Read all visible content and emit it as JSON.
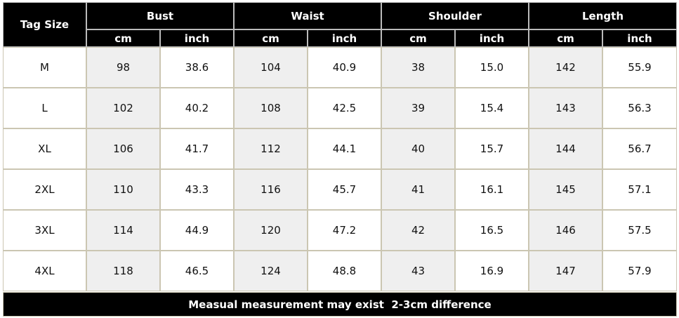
{
  "table": {
    "corner": "Tag Size",
    "groups": [
      {
        "name": "Bust",
        "units": [
          "cm",
          "inch"
        ]
      },
      {
        "name": "Waist",
        "units": [
          "cm",
          "inch"
        ]
      },
      {
        "name": "Shoulder",
        "units": [
          "cm",
          "inch"
        ]
      },
      {
        "name": "Length",
        "units": [
          "cm",
          "inch"
        ]
      }
    ],
    "rows": [
      [
        "M",
        "98",
        "38.6",
        "104",
        "40.9",
        "38",
        "15.0",
        "142",
        "55.9"
      ],
      [
        "L",
        "102",
        "40.2",
        "108",
        "42.5",
        "39",
        "15.4",
        "143",
        "56.3"
      ],
      [
        "XL",
        "106",
        "41.7",
        "112",
        "44.1",
        "40",
        "15.7",
        "144",
        "56.7"
      ],
      [
        "2XL",
        "110",
        "43.3",
        "116",
        "45.7",
        "41",
        "16.1",
        "145",
        "57.1"
      ],
      [
        "3XL",
        "114",
        "44.9",
        "120",
        "47.2",
        "42",
        "16.5",
        "146",
        "57.5"
      ],
      [
        "4XL",
        "118",
        "46.5",
        "124",
        "48.8",
        "43",
        "16.9",
        "147",
        "57.9"
      ]
    ],
    "footer": "Measual measurement may exist  2-3cm difference"
  }
}
